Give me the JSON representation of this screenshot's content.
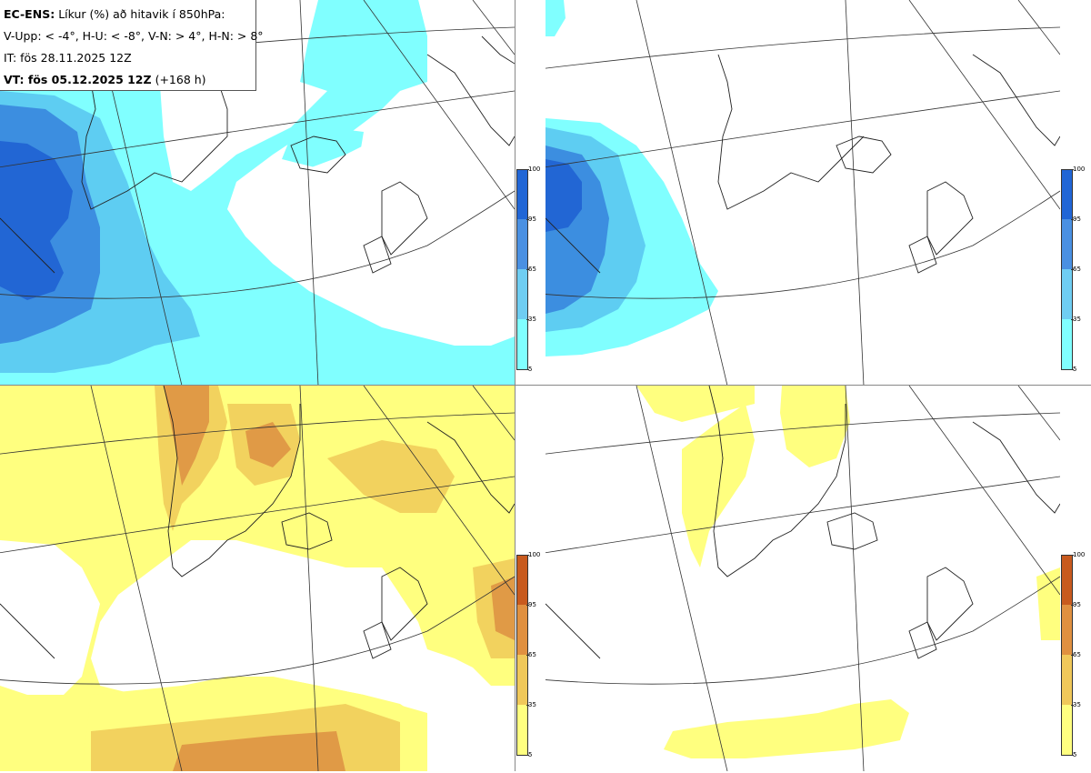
{
  "header": {
    "model_label": "EC-ENS:",
    "title_rest": "Líkur (%) að hitavik í 850hPa:",
    "thresholds": "V-Upp: < -4°, H-U: < -8°, V-N: > 4°, H-N: > 8°",
    "initial_time": "IT: fös 28.11.2025 12Z",
    "valid_label": "VT: fös 05.12.2025 12Z",
    "lead": "(+168 h)"
  },
  "panels": [
    {
      "id": "V-Upp",
      "meaning": "< -4°",
      "palette": "cold"
    },
    {
      "id": "H-U",
      "meaning": "< -8°",
      "palette": "cold"
    },
    {
      "id": "V-N",
      "meaning": "> 4°",
      "palette": "warm"
    },
    {
      "id": "H-N",
      "meaning": "> 8°",
      "palette": "warm"
    }
  ],
  "colorbar": {
    "ticks": [
      "100",
      "95",
      "65",
      "35",
      "5"
    ],
    "cold_colors": [
      "#2166d6",
      "#4a90e2",
      "#6fcdf2",
      "#80ffff"
    ],
    "warm_colors": [
      "#c85a1e",
      "#e09040",
      "#f0c85a",
      "#ffff80"
    ]
  },
  "colors": {
    "cold_5": "#80ffff",
    "cold_35": "#5ecdf2",
    "cold_65": "#3c8ee0",
    "cold_95": "#2266d4",
    "warm_5": "#ffff7f",
    "warm_35": "#f2d25e",
    "warm_65": "#e09a46",
    "warm_95": "#c8662a"
  }
}
